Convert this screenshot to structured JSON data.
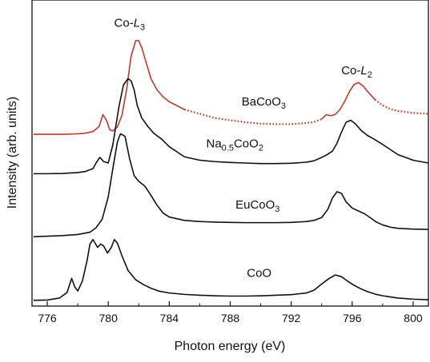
{
  "chart_data": {
    "type": "line",
    "title": "",
    "xlabel": "Photon energy (eV)",
    "ylabel": "Intensity (arb. units)",
    "xlim": [
      775,
      801
    ],
    "ylim": [
      0,
      1
    ],
    "x_ticks": [
      "776",
      "780",
      "784",
      "788",
      "792",
      "796",
      "800"
    ],
    "y_tick_labels": "none",
    "grid": false,
    "legend": "none",
    "annotations": [
      {
        "text": "Co-",
        "italic": "L",
        "sub": "3",
        "at_eV": 781.4,
        "at_y": 0.985
      },
      {
        "text": "Co-",
        "italic": "L",
        "sub": "2",
        "at_eV": 796.3,
        "at_y": 0.815
      }
    ],
    "series": [
      {
        "label": "BaCoO",
        "label_sub": "3",
        "label_at": [
          790.2,
          0.705
        ],
        "color": "#c0392b",
        "style": "solid-with-dotted-tail",
        "x": [
          775.1,
          776,
          777,
          778,
          778.5,
          779,
          779.4,
          779.65,
          779.9,
          780.1,
          780.3,
          780.6,
          780.9,
          781.2,
          781.5,
          781.8,
          782.0,
          782.2,
          782.5,
          782.8,
          783.2,
          783.6,
          784,
          785,
          786,
          787,
          788,
          789,
          790,
          791,
          792,
          793,
          793.5,
          794,
          794.3,
          794.6,
          794.9,
          795.2,
          795.5,
          795.8,
          796.1,
          796.4,
          796.7,
          797,
          797.5,
          798,
          798.5,
          799,
          800,
          801
        ],
        "y": [
          0.602,
          0.602,
          0.602,
          0.604,
          0.606,
          0.612,
          0.63,
          0.672,
          0.65,
          0.618,
          0.614,
          0.628,
          0.67,
          0.76,
          0.88,
          0.935,
          0.935,
          0.91,
          0.855,
          0.8,
          0.76,
          0.735,
          0.718,
          0.69,
          0.675,
          0.66,
          0.652,
          0.645,
          0.64,
          0.638,
          0.638,
          0.642,
          0.646,
          0.656,
          0.672,
          0.668,
          0.673,
          0.69,
          0.718,
          0.752,
          0.778,
          0.786,
          0.775,
          0.755,
          0.725,
          0.705,
          0.692,
          0.685,
          0.678,
          0.675
        ]
      },
      {
        "label": "Na",
        "label_sub": "0.5",
        "label_mid": "CoO",
        "label_sub2": "2",
        "label_at": [
          788.3,
          0.555
        ],
        "color": "#111111",
        "style": "solid",
        "x": [
          775.1,
          776,
          777,
          778,
          778.5,
          779,
          779.2,
          779.45,
          779.7,
          780,
          780.3,
          780.7,
          781.0,
          781.3,
          781.5,
          781.7,
          781.9,
          782.2,
          782.6,
          783,
          783.5,
          784,
          785,
          786,
          787,
          788,
          789,
          790,
          791,
          792,
          793,
          793.5,
          794,
          794.3,
          794.7,
          795,
          795.3,
          795.6,
          795.9,
          796.2,
          796.6,
          797,
          797.5,
          798,
          798.5,
          799,
          800,
          801
        ],
        "y": [
          0.462,
          0.462,
          0.463,
          0.466,
          0.47,
          0.48,
          0.5,
          0.52,
          0.505,
          0.5,
          0.565,
          0.7,
          0.778,
          0.8,
          0.792,
          0.76,
          0.705,
          0.66,
          0.63,
          0.605,
          0.585,
          0.558,
          0.522,
          0.51,
          0.505,
          0.502,
          0.5,
          0.498,
          0.498,
          0.499,
          0.503,
          0.508,
          0.52,
          0.528,
          0.542,
          0.57,
          0.61,
          0.645,
          0.652,
          0.64,
          0.615,
          0.598,
          0.583,
          0.566,
          0.548,
          0.53,
          0.51,
          0.5
        ]
      },
      {
        "label": "EuCoO",
        "label_sub": "3",
        "label_at": [
          789.8,
          0.338
        ],
        "color": "#111111",
        "style": "solid",
        "x": [
          775.1,
          776,
          777,
          778,
          778.8,
          779.2,
          779.6,
          780,
          780.3,
          780.6,
          780.8,
          781.1,
          781.4,
          781.7,
          782.0,
          782.4,
          782.8,
          783.2,
          783.6,
          784,
          785,
          786,
          787,
          788,
          789,
          790,
          791,
          792,
          793,
          793.5,
          794,
          794.4,
          794.7,
          795,
          795.3,
          795.6,
          796,
          796.4,
          796.8,
          797.2,
          797.6,
          798,
          798.5,
          799,
          800,
          801
        ],
        "y": [
          0.238,
          0.24,
          0.242,
          0.246,
          0.254,
          0.27,
          0.3,
          0.38,
          0.48,
          0.575,
          0.604,
          0.595,
          0.515,
          0.455,
          0.435,
          0.418,
          0.385,
          0.35,
          0.322,
          0.308,
          0.296,
          0.292,
          0.29,
          0.289,
          0.288,
          0.288,
          0.288,
          0.289,
          0.292,
          0.296,
          0.306,
          0.335,
          0.375,
          0.398,
          0.392,
          0.362,
          0.34,
          0.33,
          0.32,
          0.305,
          0.29,
          0.28,
          0.272,
          0.268,
          0.265,
          0.264
        ]
      },
      {
        "label": "CoO",
        "label_sub": "",
        "label_at": [
          789.9,
          0.095
        ],
        "color": "#111111",
        "style": "solid",
        "x": [
          775.1,
          776,
          776.8,
          777.3,
          777.6,
          777.8,
          778.0,
          778.3,
          778.6,
          778.8,
          779.0,
          779.3,
          779.5,
          779.7,
          779.95,
          780.2,
          780.4,
          780.6,
          780.9,
          781.3,
          781.8,
          782.3,
          782.8,
          783.3,
          784,
          785,
          786,
          787,
          788,
          789,
          790,
          791,
          792,
          793,
          793.5,
          794,
          794.5,
          794.9,
          795.3,
          795.7,
          796.1,
          796.6,
          797,
          797.5,
          798,
          798.5,
          799,
          800,
          801
        ],
        "y": [
          0.012,
          0.013,
          0.02,
          0.04,
          0.09,
          0.06,
          0.045,
          0.08,
          0.15,
          0.212,
          0.228,
          0.2,
          0.212,
          0.205,
          0.18,
          0.2,
          0.228,
          0.215,
          0.17,
          0.118,
          0.085,
          0.068,
          0.055,
          0.045,
          0.038,
          0.033,
          0.03,
          0.028,
          0.027,
          0.027,
          0.028,
          0.03,
          0.032,
          0.038,
          0.048,
          0.07,
          0.09,
          0.102,
          0.096,
          0.08,
          0.066,
          0.052,
          0.043,
          0.034,
          0.028,
          0.024,
          0.02,
          0.016,
          0.014
        ]
      }
    ]
  }
}
